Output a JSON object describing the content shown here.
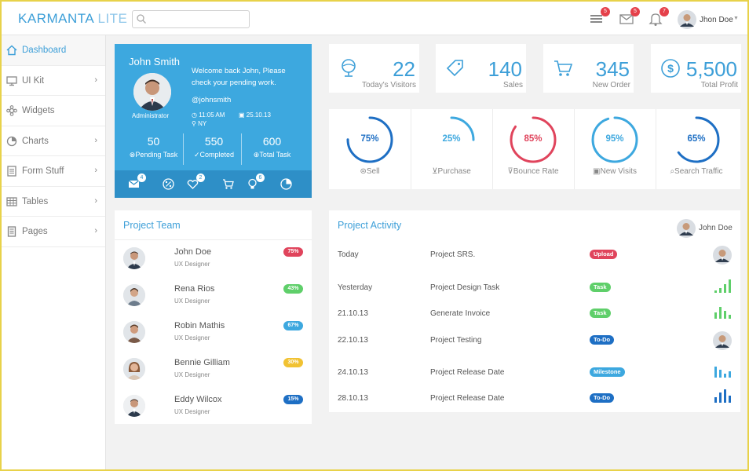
{
  "colors": {
    "accent": "#3d9fd8",
    "profile_bg": "#3da8df",
    "badge_red": "#e5404a",
    "green": "#5fcf6a",
    "blue": "#3d9fd8",
    "dark_blue": "#1e6fc4",
    "yellow": "#f1c232",
    "red": "#e0445c"
  },
  "header": {
    "logo_part1": "KARMANTA",
    "logo_part2": " LITE",
    "search_placeholder": "",
    "notifications": [
      {
        "icon": "list-icon",
        "count": "5"
      },
      {
        "icon": "mail-icon",
        "count": "5"
      },
      {
        "icon": "bell-icon",
        "count": "7"
      }
    ],
    "user_name": "Jhon Doe"
  },
  "sidebar": {
    "items": [
      {
        "label": "Dashboard",
        "icon": "home-icon",
        "active": true,
        "has_children": false
      },
      {
        "label": "UI Kit",
        "icon": "monitor-icon",
        "active": false,
        "has_children": true
      },
      {
        "label": "Widgets",
        "icon": "widgets-icon",
        "active": false,
        "has_children": false
      },
      {
        "label": "Charts",
        "icon": "pie-chart-icon",
        "active": false,
        "has_children": true
      },
      {
        "label": "Form Stuff",
        "icon": "form-icon",
        "active": false,
        "has_children": true
      },
      {
        "label": "Tables",
        "icon": "table-icon",
        "active": false,
        "has_children": true
      },
      {
        "label": "Pages",
        "icon": "pages-icon",
        "active": false,
        "has_children": true
      }
    ]
  },
  "profile": {
    "name": "John Smith",
    "role": "Administrator",
    "welcome": "Welcome back John, Please check your pending work.",
    "handle": "@johnsmith",
    "time": "11:05 AM",
    "date": "25.10.13",
    "location": "NY",
    "stats": [
      {
        "value": "50",
        "label": "Pending Task"
      },
      {
        "value": "550",
        "label": "Completed"
      },
      {
        "value": "600",
        "label": "Total Task"
      }
    ],
    "bar_items": [
      {
        "icon": "mail-icon",
        "badge": "4"
      },
      {
        "icon": "percent-icon",
        "badge": ""
      },
      {
        "icon": "heart-icon",
        "badge": "2"
      },
      {
        "icon": "cart-icon",
        "badge": ""
      },
      {
        "icon": "bulb-icon",
        "badge": "6"
      },
      {
        "icon": "pie-icon",
        "badge": ""
      }
    ]
  },
  "stat_boxes": [
    {
      "icon": "globe-icon",
      "value": "22",
      "label": "Today's Visitors"
    },
    {
      "icon": "tag-icon",
      "value": "140",
      "label": "Sales"
    },
    {
      "icon": "cart-icon",
      "value": "345",
      "label": "New Order"
    },
    {
      "icon": "dollar-icon",
      "value": "5,500",
      "label": "Total Profit"
    }
  ],
  "gauges": [
    {
      "percent": 75,
      "label": "75%",
      "name": "Sell",
      "icon": "sell-icon",
      "color": "#1e6fc4"
    },
    {
      "percent": 25,
      "label": "25%",
      "name": "Purchase",
      "icon": "cart-icon",
      "color": "#3da8df"
    },
    {
      "percent": 85,
      "label": "85%",
      "name": "Bounce Rate",
      "icon": "bounce-icon",
      "color": "#e0445c"
    },
    {
      "percent": 95,
      "label": "95%",
      "name": "New Visits",
      "icon": "visits-icon",
      "color": "#3da8df"
    },
    {
      "percent": 65,
      "label": "65%",
      "name": "Search Traffic",
      "icon": "search-icon",
      "color": "#1e6fc4"
    }
  ],
  "team": {
    "title": "Project Team",
    "members": [
      {
        "name": "John Doe",
        "role": "UX Designer",
        "percent": "75%",
        "color": "#e0445c"
      },
      {
        "name": "Rena Rios",
        "role": "UX Designer",
        "percent": "43%",
        "color": "#5fcf6a"
      },
      {
        "name": "Robin Mathis",
        "role": "UX Designer",
        "percent": "67%",
        "color": "#3da8df"
      },
      {
        "name": "Bennie Gilliam",
        "role": "UX Designer",
        "percent": "30%",
        "color": "#f1c232"
      },
      {
        "name": "Eddy Wilcox",
        "role": "UX Designer",
        "percent": "15%",
        "color": "#1e6fc4"
      }
    ]
  },
  "activity": {
    "title": "Project Activity",
    "user": "John Doe",
    "rows": [
      {
        "date": "Today",
        "task": "Project SRS.",
        "tag": "Upload",
        "tag_color": "#e0445c",
        "tail": "avatar"
      },
      {
        "date": "Yesterday",
        "task": "Project Design Task",
        "tag": "Task",
        "tag_color": "#5fcf6a",
        "tail": "bars-green"
      },
      {
        "date": "21.10.13",
        "task": "Generate Invoice",
        "tag": "Task",
        "tag_color": "#5fcf6a",
        "tail": "bars-green"
      },
      {
        "date": "22.10.13",
        "task": "Project Testing",
        "tag": "To-Do",
        "tag_color": "#1e6fc4",
        "tail": "avatar"
      },
      {
        "date": "24.10.13",
        "task": "Project Release Date",
        "tag": "Milestone",
        "tag_color": "#3da8df",
        "tail": "bars-blue"
      },
      {
        "date": "28.10.13",
        "task": "Project Release Date",
        "tag": "To-Do",
        "tag_color": "#1e6fc4",
        "tail": "bars-darkblue"
      }
    ]
  }
}
